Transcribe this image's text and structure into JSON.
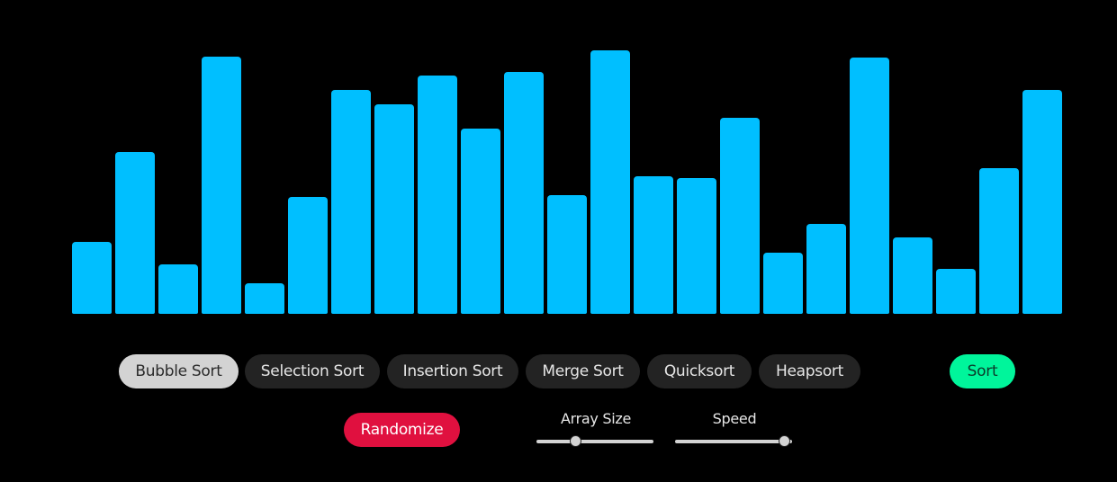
{
  "colors": {
    "background": "#000000",
    "bar": "#00bfff",
    "pill_bg": "#232323",
    "pill_active_bg": "#d3d3d3",
    "sort_button": "#00f59b",
    "randomize_button": "#e0103f"
  },
  "chart_data": {
    "type": "bar",
    "values": [
      80,
      180,
      55,
      286,
      34,
      130,
      249,
      233,
      265,
      206,
      269,
      132,
      293,
      153,
      151,
      218,
      68,
      100,
      285,
      85,
      50,
      162,
      249
    ],
    "ylim": [
      0,
      300
    ]
  },
  "algorithms": [
    {
      "label": "Bubble Sort",
      "active": true
    },
    {
      "label": "Selection Sort",
      "active": false
    },
    {
      "label": "Insertion Sort",
      "active": false
    },
    {
      "label": "Merge Sort",
      "active": false
    },
    {
      "label": "Quicksort",
      "active": false
    },
    {
      "label": "Heapsort",
      "active": false
    }
  ],
  "controls": {
    "sort_label": "Sort",
    "randomize_label": "Randomize",
    "array_size": {
      "label": "Array Size",
      "value_fraction": 0.34
    },
    "speed": {
      "label": "Speed",
      "value_fraction": 0.94
    }
  }
}
